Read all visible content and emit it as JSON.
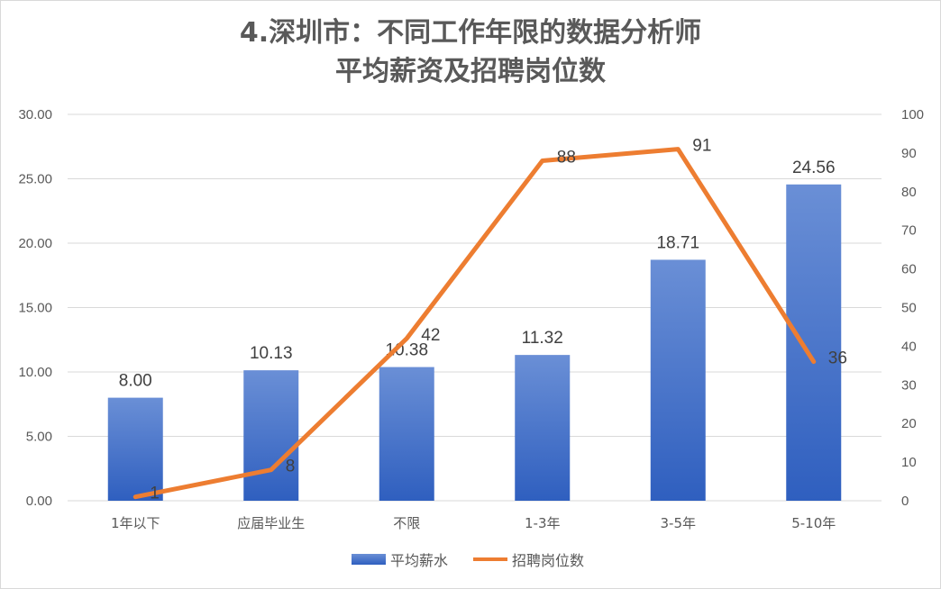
{
  "chart_data": {
    "type": "bar",
    "title_line1": "4.深圳市：不同工作年限的数据分析师",
    "title_line2": "平均薪资及招聘岗位数",
    "categories": [
      "1年以下",
      "应届毕业生",
      "不限",
      "1-3年",
      "3-5年",
      "5-10年"
    ],
    "series": [
      {
        "name": "平均薪水",
        "type": "bar",
        "axis": "left",
        "color": "#4472c4",
        "values": [
          8.0,
          10.13,
          10.38,
          11.32,
          18.71,
          24.56
        ],
        "labels": [
          "8.00",
          "10.13",
          "10.38",
          "11.32",
          "18.71",
          "24.56"
        ]
      },
      {
        "name": "招聘岗位数",
        "type": "line",
        "axis": "right",
        "color": "#ed7d31",
        "values": [
          1,
          8,
          42,
          88,
          91,
          36
        ],
        "labels": [
          "1",
          "8",
          "42",
          "88",
          "91",
          "36"
        ]
      }
    ],
    "left_axis": {
      "min": 0,
      "max": 30,
      "step": 5,
      "ticks": [
        "0.00",
        "5.00",
        "10.00",
        "15.00",
        "20.00",
        "25.00",
        "30.00"
      ]
    },
    "right_axis": {
      "min": 0,
      "max": 100,
      "step": 10,
      "ticks": [
        "0",
        "10",
        "20",
        "30",
        "40",
        "50",
        "60",
        "70",
        "80",
        "90",
        "100"
      ]
    },
    "grid": true,
    "legend_position": "bottom"
  }
}
